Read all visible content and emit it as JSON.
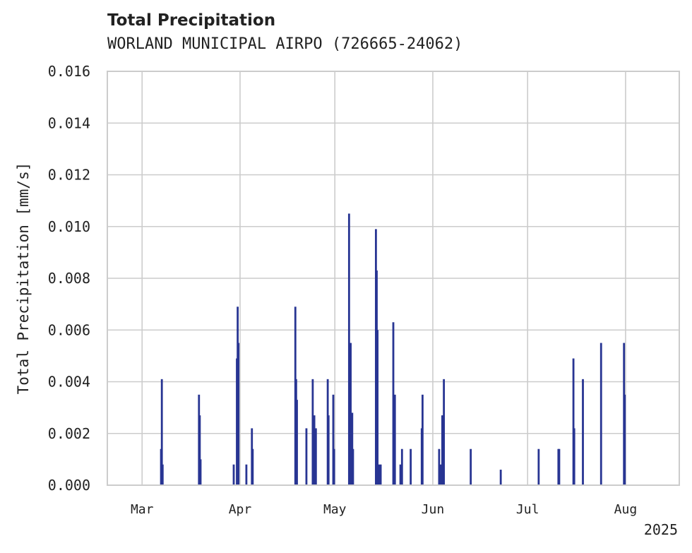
{
  "chart_data": {
    "type": "bar",
    "title": "Total Precipitation",
    "subtitle": "WORLAND MUNICIPAL AIRPO (726665-24062)",
    "xlabel": "",
    "ylabel": "Total Precipitation [mm/s]",
    "x_ticks": [
      "2025-03-01",
      "2025-04-01",
      "2025-05-01",
      "2025-06-01",
      "2025-07-01",
      "2025-08-01"
    ],
    "x_tick_labels": [
      "Mar",
      "Apr",
      "May",
      "Jun",
      "Jul",
      "Aug"
    ],
    "x_year_label": "2025",
    "xlim": [
      "2025-02-18",
      "2025-08-18"
    ],
    "ylim": [
      0,
      0.016
    ],
    "y_ticks": [
      "0.000",
      "0.002",
      "0.004",
      "0.006",
      "0.008",
      "0.010",
      "0.012",
      "0.014",
      "0.016"
    ],
    "grid": true,
    "bar_color": "#283593",
    "x": [
      "2025-03-07T00:00",
      "2025-03-07T06:00",
      "2025-03-07T12:00",
      "2025-03-19T00:00",
      "2025-03-19T06:00",
      "2025-03-19T12:00",
      "2025-03-30T00:00",
      "2025-03-31T00:00",
      "2025-03-31T06:00",
      "2025-03-31T12:00",
      "2025-04-03T00:00",
      "2025-04-04T18:00",
      "2025-04-05T00:00",
      "2025-04-18T12:00",
      "2025-04-18T18:00",
      "2025-04-19T00:00",
      "2025-04-22T00:00",
      "2025-04-24T00:00",
      "2025-04-24T12:00",
      "2025-04-25T00:00",
      "2025-04-28T18:00",
      "2025-04-29T00:00",
      "2025-04-30T12:00",
      "2025-04-30T18:00",
      "2025-05-05T12:00",
      "2025-05-06T00:00",
      "2025-05-06T12:00",
      "2025-05-06T18:00",
      "2025-05-14T00:00",
      "2025-05-14T06:00",
      "2025-05-14T12:00",
      "2025-05-15T00:00",
      "2025-05-15T12:00",
      "2025-05-19T12:00",
      "2025-05-20T00:00",
      "2025-05-21T18:00",
      "2025-05-22T06:00",
      "2025-05-25T00:00",
      "2025-05-28T12:00",
      "2025-05-28T18:00",
      "2025-06-03T00:00",
      "2025-06-03T12:00",
      "2025-06-04T00:00",
      "2025-06-04T06:00",
      "2025-06-04T12:00",
      "2025-06-13T00:00",
      "2025-06-22T12:00",
      "2025-07-04T12:00",
      "2025-07-10T18:00",
      "2025-07-11T00:00",
      "2025-07-15T12:00",
      "2025-07-15T18:00",
      "2025-07-18T12:00",
      "2025-07-24T06:00",
      "2025-07-31T12:00",
      "2025-07-31T18:00"
    ],
    "values": [
      0.0014,
      0.0041,
      0.0008,
      0.0035,
      0.0027,
      0.001,
      0.0008,
      0.0049,
      0.0069,
      0.0055,
      0.0008,
      0.0022,
      0.0014,
      0.0069,
      0.0041,
      0.0033,
      0.0022,
      0.0041,
      0.0027,
      0.0022,
      0.0041,
      0.0027,
      0.0035,
      0.0014,
      0.0105,
      0.0055,
      0.0028,
      0.0014,
      0.0099,
      0.0083,
      0.006,
      0.0008,
      0.0008,
      0.0063,
      0.0035,
      0.0008,
      0.0014,
      0.0014,
      0.0022,
      0.0035,
      0.0014,
      0.0008,
      0.0027,
      0.0027,
      0.0041,
      0.0014,
      0.0006,
      0.0014,
      0.0014,
      0.0014,
      0.0049,
      0.0022,
      0.0041,
      0.0055,
      0.0055,
      0.0035
    ]
  }
}
